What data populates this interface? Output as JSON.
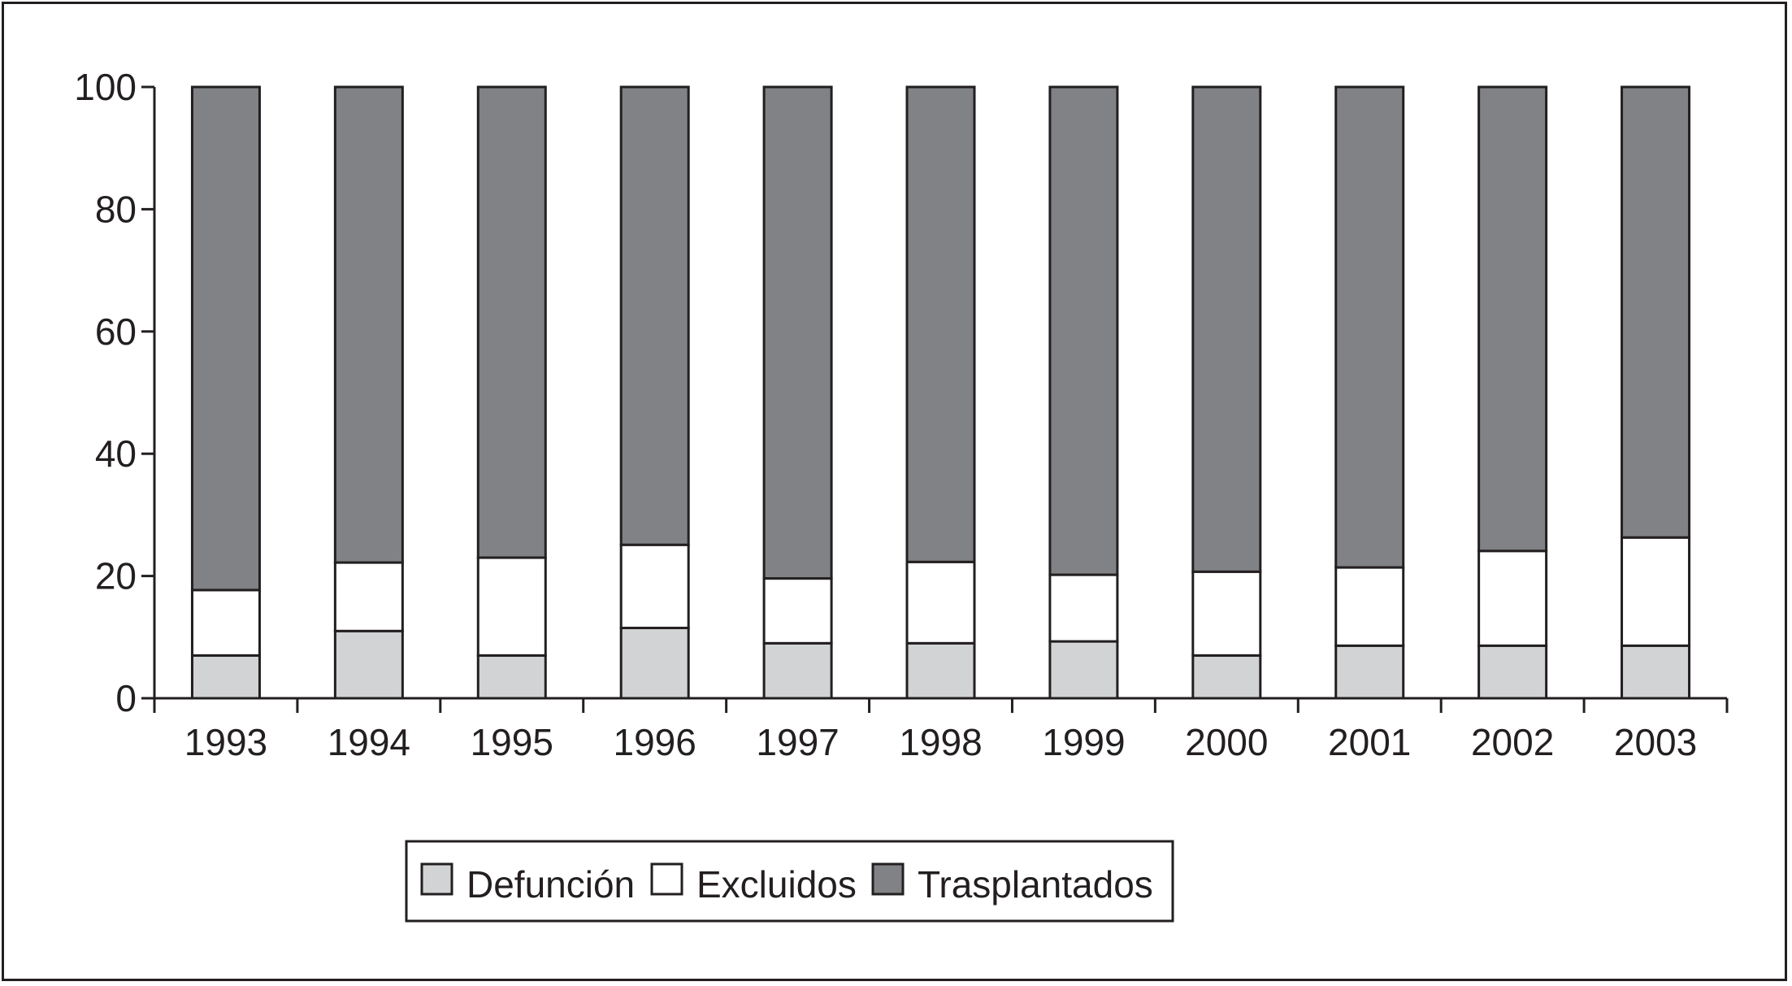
{
  "chart_data": {
    "type": "bar",
    "stacked": true,
    "categories": [
      "1993",
      "1994",
      "1995",
      "1996",
      "1997",
      "1998",
      "1999",
      "2000",
      "2001",
      "2002",
      "2003"
    ],
    "series": [
      {
        "name": "Defunción",
        "color": "#d1d3d4",
        "values": [
          7,
          11,
          7,
          11.5,
          9,
          9,
          9.3,
          7,
          8.6,
          8.6,
          8.6
        ]
      },
      {
        "name": "Excluidos",
        "color": "#ffffff",
        "values": [
          10.7,
          11.2,
          16,
          13.6,
          10.6,
          13.3,
          10.9,
          13.7,
          12.8,
          15.5,
          17.7
        ]
      },
      {
        "name": "Trasplantados",
        "color": "#808285",
        "values": [
          82.3,
          77.8,
          77,
          74.9,
          80.4,
          77.7,
          79.8,
          79.3,
          78.6,
          75.9,
          73.7
        ]
      }
    ],
    "ylim": [
      0,
      100
    ],
    "yticks": [
      "0",
      "20",
      "40",
      "60",
      "80",
      "100"
    ],
    "title": "",
    "xlabel": "",
    "ylabel": "",
    "grid": false,
    "legend_position": "bottom-center"
  }
}
